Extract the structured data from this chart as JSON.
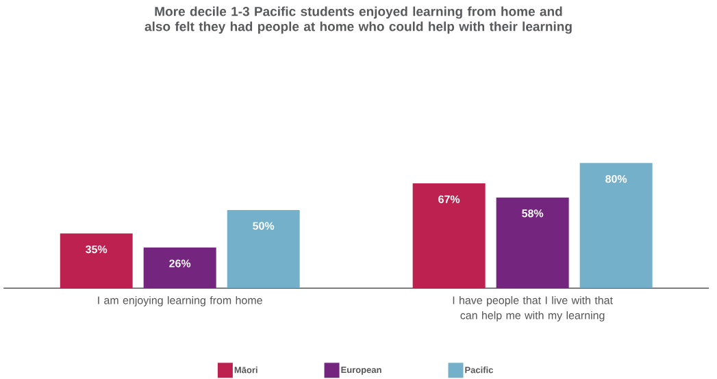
{
  "chart_data": {
    "type": "bar",
    "title": "More decile 1-3 Pacific students enjoyed learning from home and also felt they had people at home who could help with their learning",
    "categories": [
      "I am enjoying learning from home",
      "I have people that I live with that can help me with my learning"
    ],
    "series": [
      {
        "name": "Māori",
        "color": "#bc2150",
        "values": [
          35,
          67
        ],
        "value_labels": [
          "35%",
          "67%"
        ]
      },
      {
        "name": "European",
        "color": "#74267f",
        "values": [
          26,
          58
        ],
        "value_labels": [
          "26%",
          "58%"
        ]
      },
      {
        "name": "Pacific",
        "color": "#74b0c9",
        "values": [
          50,
          80
        ],
        "value_labels": [
          "50%",
          "80%"
        ]
      }
    ],
    "legend": "bottom"
  }
}
